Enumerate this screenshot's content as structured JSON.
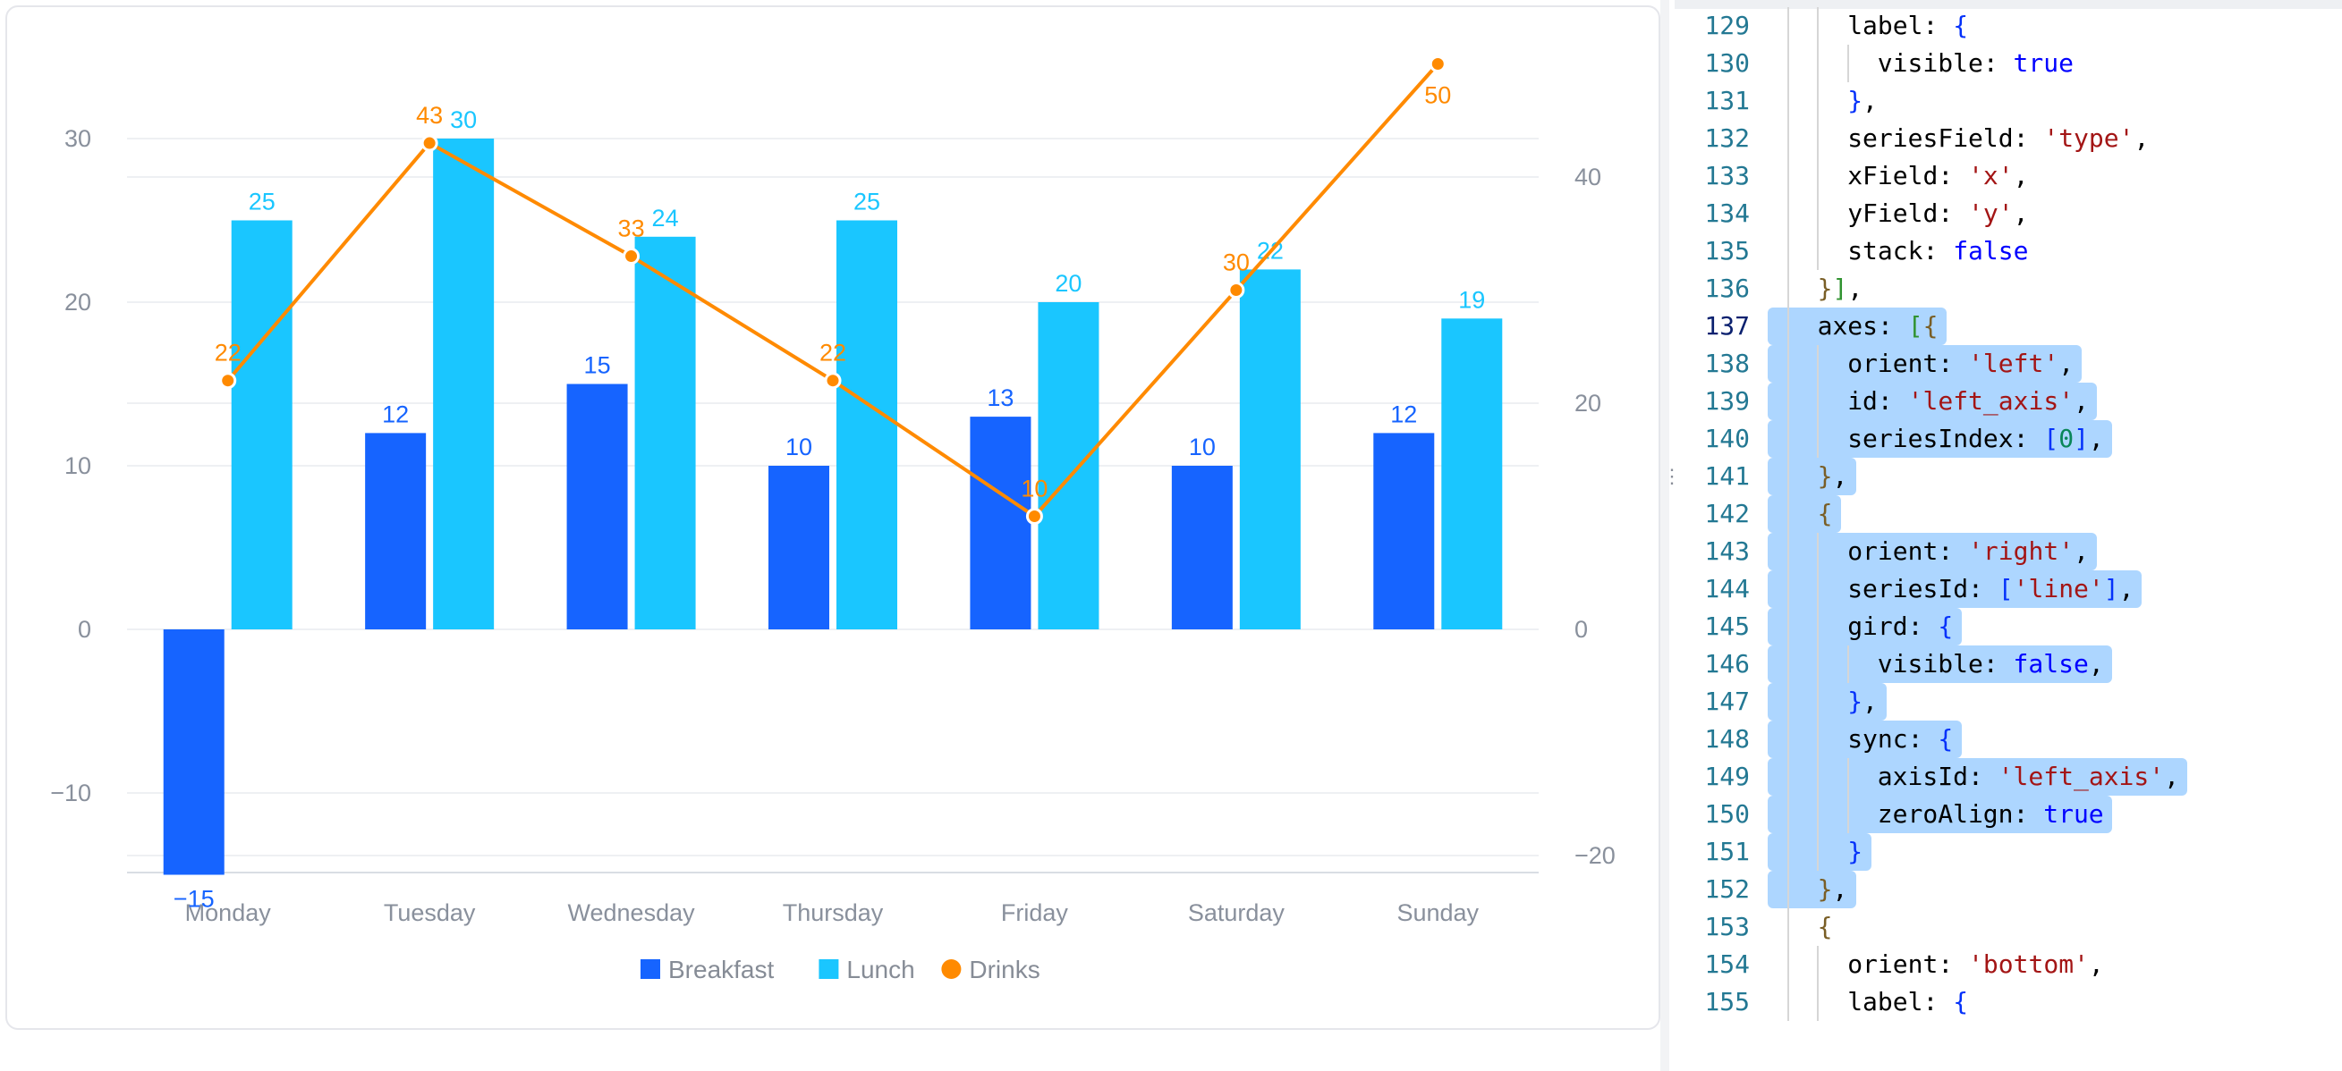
{
  "chart_data": {
    "type": "bar",
    "categories": [
      "Monday",
      "Tuesday",
      "Wednesday",
      "Thursday",
      "Friday",
      "Saturday",
      "Sunday"
    ],
    "series": [
      {
        "name": "Breakfast",
        "type": "bar",
        "axis": "left",
        "color": "#1664ff",
        "values": [
          -15,
          12,
          15,
          10,
          13,
          10,
          12
        ]
      },
      {
        "name": "Lunch",
        "type": "bar",
        "axis": "left",
        "color": "#1ac6ff",
        "values": [
          25,
          30,
          24,
          25,
          20,
          22,
          19
        ]
      },
      {
        "name": "Drinks",
        "type": "line",
        "axis": "right",
        "color": "#ff8a00",
        "values": [
          22,
          43,
          33,
          22,
          10,
          30,
          50
        ]
      }
    ],
    "left_axis": {
      "ticks": [
        "30",
        "20",
        "10",
        "0",
        "−10"
      ],
      "tick_values": [
        30,
        20,
        10,
        0,
        -10
      ]
    },
    "right_axis": {
      "ticks": [
        "40",
        "20",
        "0",
        "−20"
      ],
      "tick_values": [
        40,
        20,
        0,
        -20
      ]
    },
    "legend": {
      "position": "bottom",
      "items": [
        "Breakfast",
        "Lunch",
        "Drinks"
      ]
    },
    "grid": true,
    "data_labels": true
  },
  "editor": {
    "divider_handle": "⋮⋮",
    "lines": [
      {
        "num": "129",
        "tokens": [
          [
            "key",
            "label"
          ],
          [
            "p",
            ": "
          ],
          [
            "b1",
            "{"
          ]
        ]
      },
      {
        "num": "130",
        "tokens": [
          [
            "key",
            "visible"
          ],
          [
            "p",
            ": "
          ],
          [
            "bool",
            "true"
          ]
        ]
      },
      {
        "num": "131",
        "tokens": [
          [
            "b1",
            "}"
          ],
          [
            "p",
            ","
          ]
        ]
      },
      {
        "num": "132",
        "tokens": [
          [
            "key",
            "seriesField"
          ],
          [
            "p",
            ": "
          ],
          [
            "str",
            "'type'"
          ],
          [
            "p",
            ","
          ]
        ]
      },
      {
        "num": "133",
        "tokens": [
          [
            "key",
            "xField"
          ],
          [
            "p",
            ": "
          ],
          [
            "str",
            "'x'"
          ],
          [
            "p",
            ","
          ]
        ]
      },
      {
        "num": "134",
        "tokens": [
          [
            "key",
            "yField"
          ],
          [
            "p",
            ": "
          ],
          [
            "str",
            "'y'"
          ],
          [
            "p",
            ","
          ]
        ]
      },
      {
        "num": "135",
        "tokens": [
          [
            "key",
            "stack"
          ],
          [
            "p",
            ": "
          ],
          [
            "bool",
            "false"
          ]
        ]
      },
      {
        "num": "136",
        "tokens": [
          [
            "b2",
            "}"
          ],
          [
            "b3",
            "]"
          ],
          [
            "p",
            ","
          ]
        ]
      },
      {
        "num": "137",
        "tokens": [
          [
            "key",
            "axes"
          ],
          [
            "p",
            ": "
          ],
          [
            "b3",
            "["
          ],
          [
            "b2",
            "{"
          ]
        ]
      },
      {
        "num": "138",
        "tokens": [
          [
            "key",
            "orient"
          ],
          [
            "p",
            ": "
          ],
          [
            "str",
            "'left'"
          ],
          [
            "p",
            ","
          ]
        ]
      },
      {
        "num": "139",
        "tokens": [
          [
            "key",
            "id"
          ],
          [
            "p",
            ": "
          ],
          [
            "str",
            "'left_axis'"
          ],
          [
            "p",
            ","
          ]
        ]
      },
      {
        "num": "140",
        "tokens": [
          [
            "key",
            "seriesIndex"
          ],
          [
            "p",
            ": "
          ],
          [
            "b1",
            "["
          ],
          [
            "num",
            "0"
          ],
          [
            "b1",
            "]"
          ],
          [
            "p",
            ","
          ]
        ]
      },
      {
        "num": "141",
        "tokens": [
          [
            "b2",
            "}"
          ],
          [
            "p",
            ","
          ]
        ]
      },
      {
        "num": "142",
        "tokens": [
          [
            "b2",
            "{"
          ]
        ]
      },
      {
        "num": "143",
        "tokens": [
          [
            "key",
            "orient"
          ],
          [
            "p",
            ": "
          ],
          [
            "str",
            "'right'"
          ],
          [
            "p",
            ","
          ]
        ]
      },
      {
        "num": "144",
        "tokens": [
          [
            "key",
            "seriesId"
          ],
          [
            "p",
            ": "
          ],
          [
            "b1",
            "["
          ],
          [
            "str",
            "'line'"
          ],
          [
            "b1",
            "]"
          ],
          [
            "p",
            ","
          ]
        ]
      },
      {
        "num": "145",
        "tokens": [
          [
            "key",
            "gird"
          ],
          [
            "p",
            ": "
          ],
          [
            "b1",
            "{"
          ]
        ]
      },
      {
        "num": "146",
        "tokens": [
          [
            "key",
            "visible"
          ],
          [
            "p",
            ": "
          ],
          [
            "bool",
            "false"
          ],
          [
            "p",
            ","
          ]
        ]
      },
      {
        "num": "147",
        "tokens": [
          [
            "b1",
            "}"
          ],
          [
            "p",
            ","
          ]
        ]
      },
      {
        "num": "148",
        "tokens": [
          [
            "key",
            "sync"
          ],
          [
            "p",
            ": "
          ],
          [
            "b1",
            "{"
          ]
        ]
      },
      {
        "num": "149",
        "tokens": [
          [
            "key",
            "axisId"
          ],
          [
            "p",
            ": "
          ],
          [
            "str",
            "'left_axis'"
          ],
          [
            "p",
            ","
          ]
        ]
      },
      {
        "num": "150",
        "tokens": [
          [
            "key",
            "zeroAlign"
          ],
          [
            "p",
            ": "
          ],
          [
            "bool",
            "true"
          ]
        ]
      },
      {
        "num": "151",
        "tokens": [
          [
            "b1",
            "}"
          ]
        ]
      },
      {
        "num": "152",
        "tokens": [
          [
            "b2",
            "}"
          ],
          [
            "p",
            ","
          ]
        ]
      },
      {
        "num": "153",
        "tokens": [
          [
            "b2",
            "{"
          ]
        ]
      },
      {
        "num": "154",
        "tokens": [
          [
            "key",
            "orient"
          ],
          [
            "p",
            ": "
          ],
          [
            "str",
            "'bottom'"
          ],
          [
            "p",
            ","
          ]
        ]
      },
      {
        "num": "155",
        "tokens": [
          [
            "key",
            "label"
          ],
          [
            "p",
            ": "
          ],
          [
            "b1",
            "{"
          ]
        ]
      }
    ]
  }
}
